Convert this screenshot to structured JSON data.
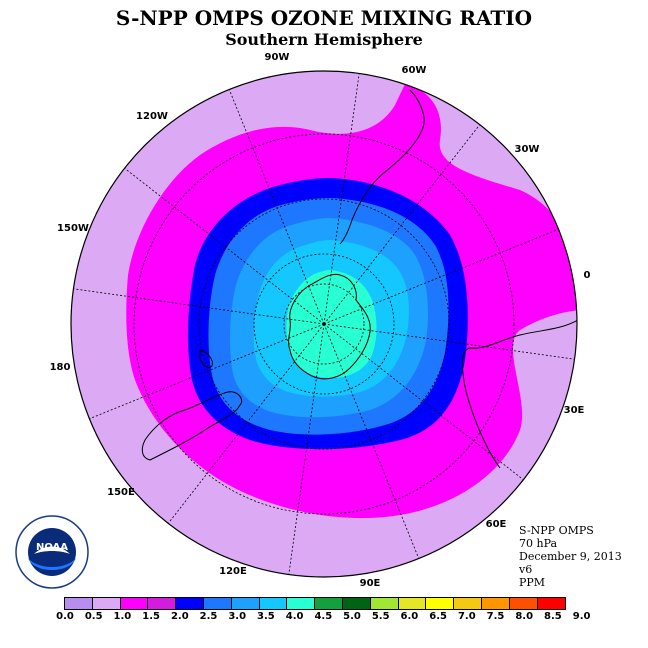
{
  "title": "S-NPP OMPS OZONE MIXING RATIO",
  "subtitle": "Southern Hemisphere",
  "info": {
    "instrument": "S-NPP OMPS",
    "pressure": "70 hPa",
    "date": "December 9, 2013",
    "version": "v6",
    "units": "PPM"
  },
  "longitude_labels": [
    "90W",
    "60W",
    "30W",
    "0",
    "30E",
    "60E",
    "90E",
    "120E",
    "150E",
    "180",
    "150W",
    "120W"
  ],
  "colorbar": {
    "ticks": [
      "0.0",
      "0.5",
      "1.0",
      "1.5",
      "2.0",
      "2.5",
      "3.0",
      "3.5",
      "4.0",
      "4.5",
      "5.0",
      "5.5",
      "6.0",
      "6.5",
      "7.0",
      "7.5",
      "8.0",
      "8.5",
      "9.0"
    ],
    "colors": [
      "#b98cf0",
      "#dcaaf5",
      "#ff00ff",
      "#d21edc",
      "#0000ff",
      "#1e78ff",
      "#1ea0ff",
      "#14c8ff",
      "#28ffd2",
      "#14a03c",
      "#006414",
      "#a0e632",
      "#e6e628",
      "#ffff00",
      "#f5c814",
      "#ff9600",
      "#ff5000",
      "#ff0000",
      "#8c5a3c"
    ]
  },
  "map_colors": {
    "lavender": "#dcaaf5",
    "magenta": "#ff00ff",
    "blue": "#0000ff",
    "mid_blue": "#1e78ff",
    "light_blue": "#1ea0ff",
    "cyan": "#14c8ff",
    "aqua": "#28ffd2"
  },
  "logo_text": "NOAA"
}
